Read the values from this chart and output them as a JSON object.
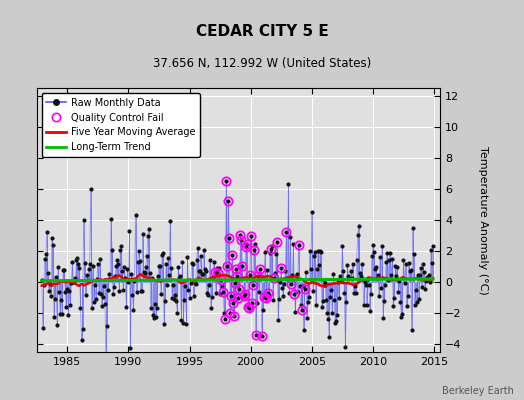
{
  "title": "CEDAR CITY 5 E",
  "subtitle": "37.656 N, 112.992 W (United States)",
  "ylabel": "Temperature Anomaly (°C)",
  "watermark": "Berkeley Earth",
  "xlim": [
    1982.5,
    2015.5
  ],
  "ylim": [
    -4.5,
    12.5
  ],
  "yticks": [
    -4,
    -2,
    0,
    2,
    4,
    6,
    8,
    10,
    12
  ],
  "xticks": [
    1985,
    1990,
    1995,
    2000,
    2005,
    2010,
    2015
  ],
  "bg_color": "#cccccc",
  "plot_bg_color": "#e0e0e0",
  "raw_line_color": "#5555ff",
  "raw_marker_color": "#111111",
  "ma_color": "#ee0000",
  "trend_color": "#00bb00",
  "qc_color": "#ff00ff",
  "grid_color": "#ffffff",
  "seed": 17,
  "n_months": 385,
  "start_year": 1982.917,
  "trend_value": 0.35,
  "ma_window": 60
}
